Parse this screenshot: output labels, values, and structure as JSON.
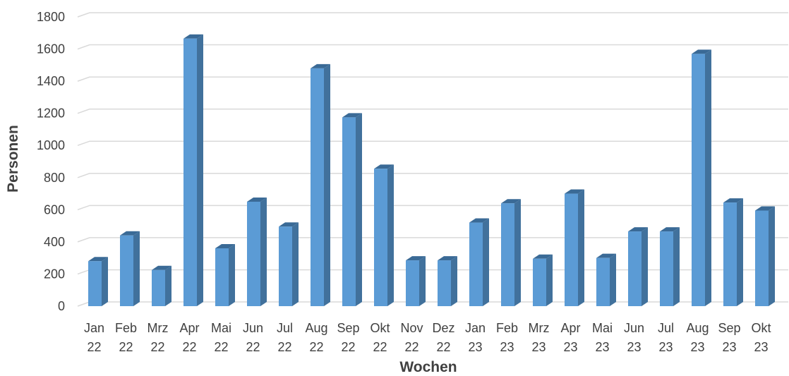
{
  "chart_data": {
    "type": "bar",
    "title": "",
    "xlabel": "Wochen",
    "ylabel": "Personen",
    "ylim": [
      0,
      1800
    ],
    "yticks": [
      0,
      200,
      400,
      600,
      800,
      1000,
      1200,
      1400,
      1600,
      1800
    ],
    "grid": true,
    "style": "3d-column",
    "colors": {
      "bar_front": "#5b9bd5",
      "bar_side": "#41719c",
      "bar_top": "#3a6a96",
      "grid": "#d9d9d9",
      "text": "#404040"
    },
    "categories": [
      [
        "Jan",
        "22"
      ],
      [
        "Feb",
        "22"
      ],
      [
        "Mrz",
        "22"
      ],
      [
        "Apr",
        "22"
      ],
      [
        "Mai",
        "22"
      ],
      [
        "Jun",
        "22"
      ],
      [
        "Jul",
        "22"
      ],
      [
        "Aug",
        "22"
      ],
      [
        "Sep",
        "22"
      ],
      [
        "Okt",
        "22"
      ],
      [
        "Nov",
        "22"
      ],
      [
        "Dez",
        "22"
      ],
      [
        "Jan",
        "23"
      ],
      [
        "Feb",
        "23"
      ],
      [
        "Mrz",
        "23"
      ],
      [
        "Apr",
        "23"
      ],
      [
        "Mai",
        "23"
      ],
      [
        "Jun",
        "23"
      ],
      [
        "Jul",
        "23"
      ],
      [
        "Aug",
        "23"
      ],
      [
        "Sep",
        "23"
      ],
      [
        "Okt",
        "23"
      ]
    ],
    "values": [
      280,
      440,
      225,
      1665,
      360,
      650,
      495,
      1480,
      1175,
      855,
      285,
      285,
      520,
      640,
      295,
      700,
      300,
      465,
      465,
      1570,
      645,
      595
    ]
  }
}
